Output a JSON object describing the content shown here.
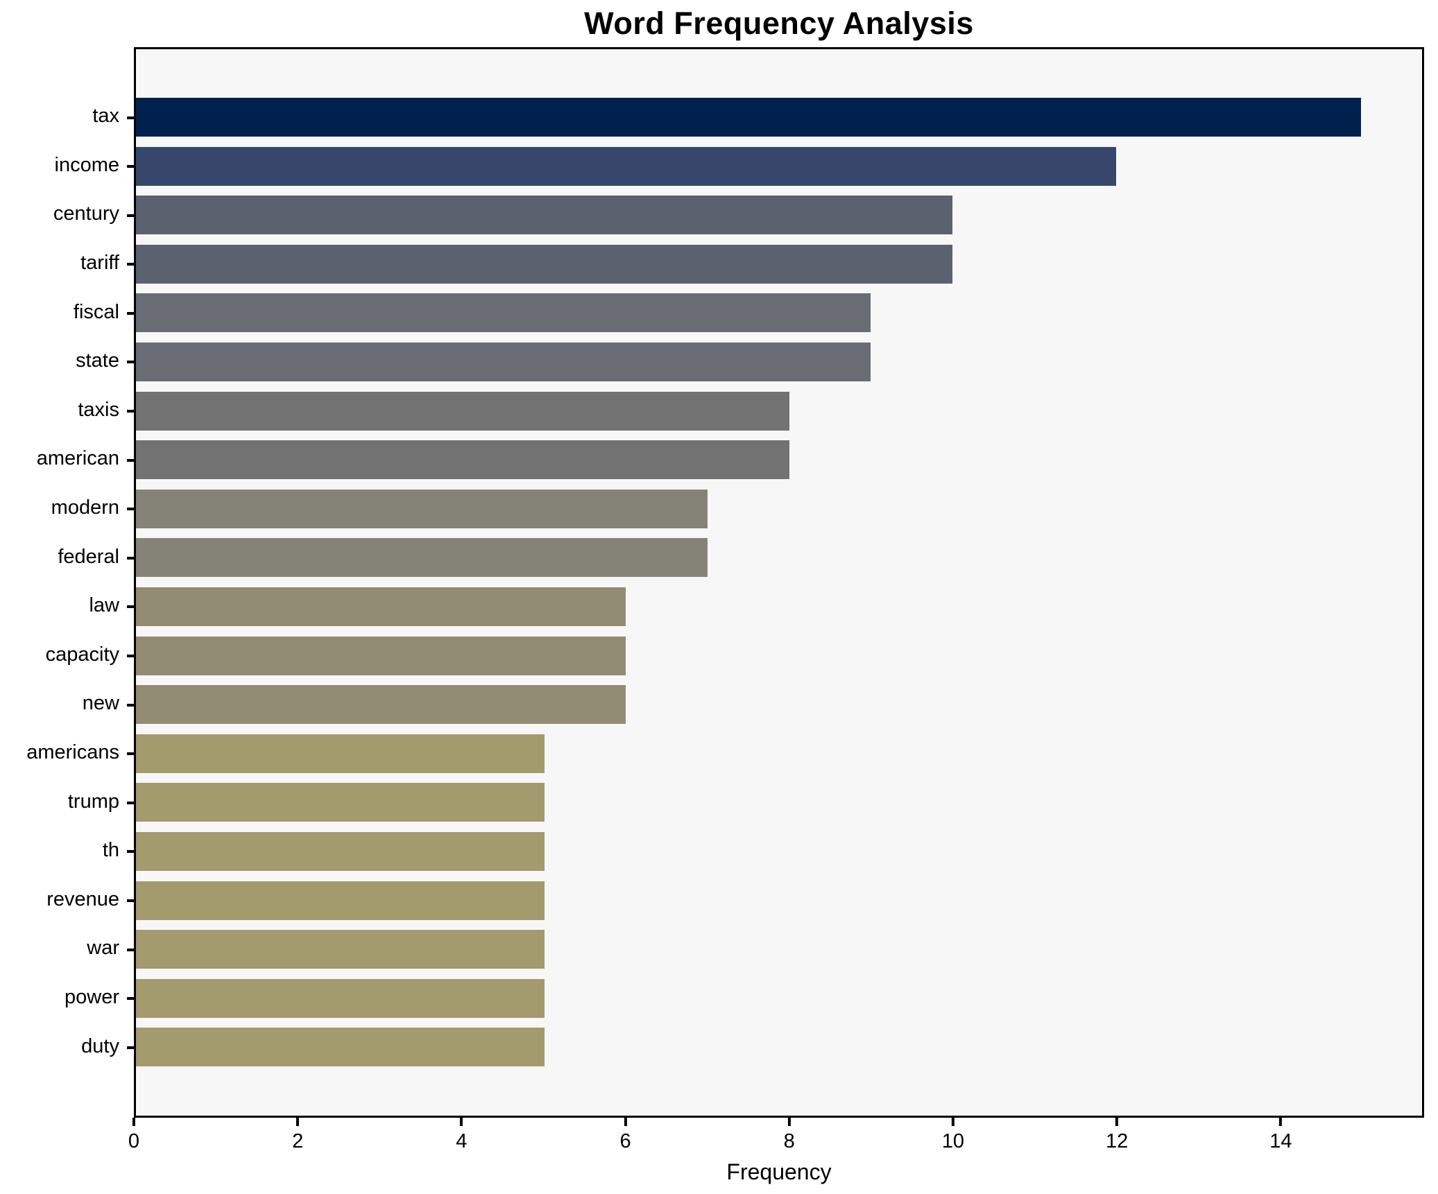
{
  "title": "Word Frequency Analysis",
  "chart_data": {
    "type": "bar",
    "orientation": "horizontal",
    "title": "Word Frequency Analysis",
    "xlabel": "Frequency",
    "ylabel": "",
    "xlim": [
      0,
      15.75
    ],
    "xticks": [
      0,
      2,
      4,
      6,
      8,
      10,
      12,
      14
    ],
    "grid": false,
    "plot_background": "#f7f7f8",
    "categories": [
      "tax",
      "income",
      "century",
      "tariff",
      "fiscal",
      "state",
      "taxis",
      "american",
      "modern",
      "federal",
      "law",
      "capacity",
      "new",
      "americans",
      "trump",
      "th",
      "revenue",
      "war",
      "power",
      "duty"
    ],
    "values": [
      15,
      12,
      10,
      10,
      9,
      9,
      8,
      8,
      7,
      7,
      6,
      6,
      6,
      5,
      5,
      5,
      5,
      5,
      5,
      5
    ],
    "bar_colors": [
      "#00214d",
      "#36476b",
      "#5c6170",
      "#5c6170",
      "#696c72",
      "#696c72",
      "#727272",
      "#727272",
      "#858278",
      "#858278",
      "#918c72",
      "#918c72",
      "#918c72",
      "#a39a6e",
      "#a39a6e",
      "#a39a6e",
      "#a39a6e",
      "#a39a6e",
      "#a39a6e",
      "#a39a6e"
    ]
  }
}
